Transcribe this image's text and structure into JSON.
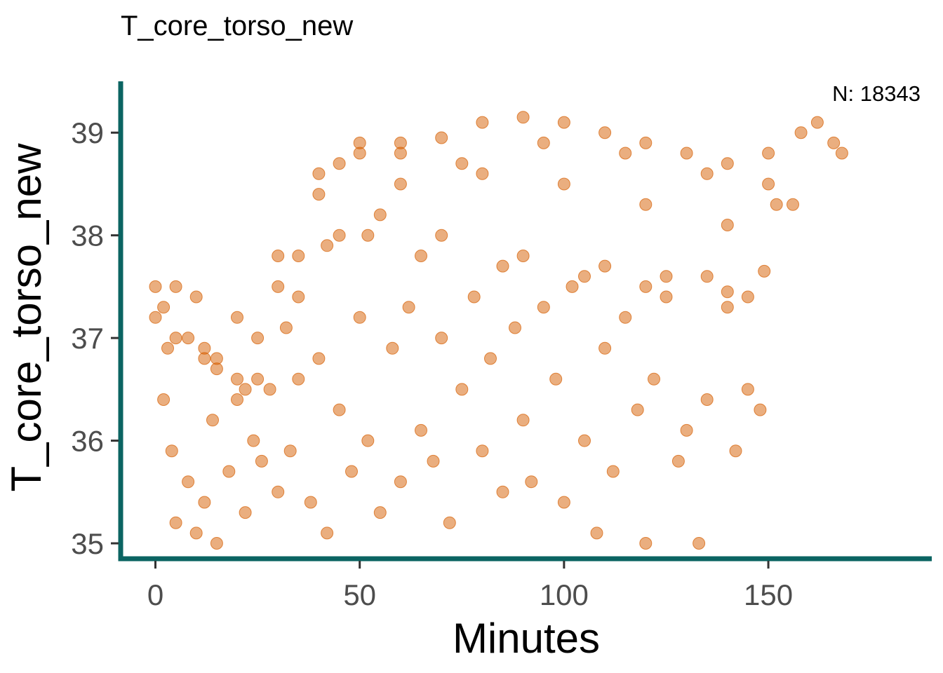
{
  "chart_data": {
    "type": "scatter",
    "title": "T_core_torso_new",
    "xlabel": "Minutes",
    "ylabel": "T_core_torso_new",
    "annotation": "N: 18343",
    "xlim": [
      -8.5,
      190
    ],
    "ylim": [
      34.85,
      39.5
    ],
    "x_ticks": [
      0,
      50,
      100,
      150
    ],
    "x_tick_labels": [
      "0",
      "50",
      "100",
      "150"
    ],
    "y_ticks": [
      35,
      36,
      37,
      38,
      39
    ],
    "y_tick_labels": [
      "35",
      "36",
      "37",
      "38",
      "39"
    ],
    "grid": false,
    "legend": "none",
    "point_color": "#d55e00",
    "point_opacity": 0.5,
    "axis_color": "#0b6462",
    "series": [
      {
        "points": [
          [
            0,
            37.2
          ],
          [
            2,
            37.3
          ],
          [
            5,
            37.5
          ],
          [
            8,
            37.0
          ],
          [
            12,
            36.9
          ],
          [
            15,
            36.7
          ],
          [
            20,
            36.6
          ],
          [
            25,
            37.0
          ],
          [
            30,
            37.5
          ],
          [
            35,
            37.8
          ],
          [
            40,
            38.4
          ],
          [
            45,
            38.7
          ],
          [
            50,
            38.8
          ],
          [
            60,
            38.9
          ],
          [
            70,
            38.95
          ],
          [
            80,
            39.1
          ],
          [
            90,
            39.15
          ],
          [
            100,
            39.1
          ],
          [
            110,
            39.0
          ],
          [
            120,
            38.9
          ],
          [
            130,
            38.8
          ],
          [
            140,
            38.7
          ],
          [
            150,
            38.8
          ],
          [
            158,
            39.0
          ],
          [
            162,
            39.1
          ],
          [
            166,
            38.9
          ],
          [
            168,
            38.8
          ],
          [
            0,
            37.5
          ],
          [
            10,
            37.4
          ],
          [
            20,
            37.2
          ],
          [
            30,
            37.8
          ],
          [
            40,
            38.6
          ],
          [
            50,
            38.9
          ],
          [
            60,
            38.8
          ],
          [
            80,
            38.6
          ],
          [
            100,
            38.5
          ],
          [
            120,
            38.3
          ],
          [
            140,
            38.1
          ],
          [
            152,
            38.3
          ],
          [
            156,
            38.3
          ],
          [
            5,
            37.0
          ],
          [
            15,
            36.8
          ],
          [
            25,
            36.6
          ],
          [
            35,
            37.4
          ],
          [
            45,
            38.0
          ],
          [
            55,
            38.2
          ],
          [
            70,
            38.0
          ],
          [
            90,
            37.8
          ],
          [
            110,
            37.7
          ],
          [
            125,
            37.6
          ],
          [
            135,
            37.6
          ],
          [
            3,
            36.9
          ],
          [
            12,
            36.8
          ],
          [
            22,
            36.5
          ],
          [
            32,
            37.1
          ],
          [
            42,
            37.9
          ],
          [
            52,
            38.0
          ],
          [
            65,
            37.8
          ],
          [
            85,
            37.7
          ],
          [
            105,
            37.6
          ],
          [
            120,
            37.5
          ],
          [
            140,
            37.45
          ],
          [
            145,
            37.4
          ],
          [
            60,
            38.5
          ],
          [
            75,
            38.7
          ],
          [
            95,
            38.9
          ],
          [
            115,
            38.8
          ],
          [
            135,
            38.6
          ],
          [
            150,
            38.5
          ],
          [
            2,
            36.4
          ],
          [
            4,
            35.9
          ],
          [
            5,
            35.2
          ],
          [
            8,
            35.6
          ],
          [
            10,
            35.1
          ],
          [
            12,
            35.4
          ],
          [
            14,
            36.2
          ],
          [
            15,
            35.0
          ],
          [
            18,
            35.7
          ],
          [
            20,
            36.4
          ],
          [
            22,
            35.3
          ],
          [
            24,
            36.0
          ],
          [
            26,
            35.8
          ],
          [
            28,
            36.5
          ],
          [
            30,
            35.5
          ],
          [
            33,
            35.9
          ],
          [
            35,
            36.6
          ],
          [
            38,
            35.4
          ],
          [
            40,
            36.8
          ],
          [
            42,
            35.1
          ],
          [
            45,
            36.3
          ],
          [
            48,
            35.7
          ],
          [
            50,
            37.2
          ],
          [
            52,
            36.0
          ],
          [
            55,
            35.3
          ],
          [
            58,
            36.9
          ],
          [
            60,
            35.6
          ],
          [
            62,
            37.3
          ],
          [
            65,
            36.1
          ],
          [
            68,
            35.8
          ],
          [
            70,
            37.0
          ],
          [
            72,
            35.2
          ],
          [
            75,
            36.5
          ],
          [
            78,
            37.4
          ],
          [
            80,
            35.9
          ],
          [
            82,
            36.8
          ],
          [
            85,
            35.5
          ],
          [
            88,
            37.1
          ],
          [
            90,
            36.2
          ],
          [
            92,
            35.6
          ],
          [
            95,
            37.3
          ],
          [
            98,
            36.6
          ],
          [
            100,
            35.4
          ],
          [
            102,
            37.5
          ],
          [
            105,
            36.0
          ],
          [
            108,
            35.1
          ],
          [
            110,
            36.9
          ],
          [
            112,
            35.7
          ],
          [
            115,
            37.2
          ],
          [
            118,
            36.3
          ],
          [
            120,
            35.0
          ],
          [
            122,
            36.6
          ],
          [
            125,
            37.4
          ],
          [
            128,
            35.8
          ],
          [
            130,
            36.1
          ],
          [
            133,
            35.0
          ],
          [
            135,
            36.4
          ],
          [
            140,
            37.3
          ],
          [
            142,
            35.9
          ],
          [
            145,
            36.5
          ],
          [
            148,
            36.3
          ],
          [
            149,
            37.65
          ]
        ]
      }
    ]
  }
}
